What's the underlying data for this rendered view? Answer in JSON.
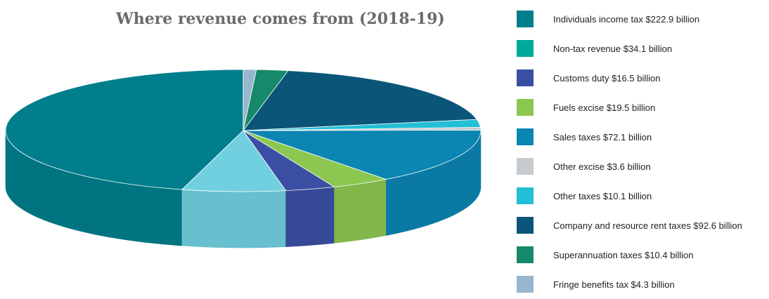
{
  "chart_data": {
    "type": "pie",
    "title": "Where revenue comes from (2018-19)",
    "legend_position": "right",
    "slices": [
      {
        "label": "Individuals income tax $222.9 billion",
        "value": 222.9,
        "color": "#007e8c"
      },
      {
        "label": "Non-tax revenue $34.1 billion",
        "value": 34.1,
        "color": "#71d0df"
      },
      {
        "label": "Customs duty $16.5 billion",
        "value": 16.5,
        "color": "#3a4fa3"
      },
      {
        "label": "Fuels excise $19.5 billion",
        "value": 19.5,
        "color": "#8cc751"
      },
      {
        "label": "Sales taxes $72.1 billion",
        "value": 72.1,
        "color": "#0b85b2"
      },
      {
        "label": "Other excise $3.6 billion",
        "value": 3.6,
        "color": "#c7cbce"
      },
      {
        "label": "Other taxes $10.1 billion",
        "value": 10.1,
        "color": "#22bfd6"
      },
      {
        "label": "Company and resource rent taxes $92.6 billion",
        "value": 92.6,
        "color": "#0b5579"
      },
      {
        "label": "Superannuation taxes $10.4 billion",
        "value": 10.4,
        "color": "#16896a"
      },
      {
        "label": "Fringe benefits tax $4.3 billion",
        "value": 4.3,
        "color": "#98b6cf"
      }
    ],
    "legend": [
      {
        "label": "Individuals income tax $222.9 billion",
        "color": "#007e8c"
      },
      {
        "label": "Non-tax revenue $34.1 billion",
        "color": "#00a99d"
      },
      {
        "label": "Customs duty $16.5 billion",
        "color": "#3a4fa3"
      },
      {
        "label": "Fuels excise $19.5 billion",
        "color": "#8cc751"
      },
      {
        "label": "Sales taxes $72.1 billion",
        "color": "#0b85b2"
      },
      {
        "label": "Other excise $3.6 billion",
        "color": "#c7cbce"
      },
      {
        "label": "Other taxes $10.1 billion",
        "color": "#22bfd6"
      },
      {
        "label": "Company and resource rent taxes $92.6 billion",
        "color": "#0b5579"
      },
      {
        "label": "Superannuation taxes $10.4 billion",
        "color": "#16896a"
      },
      {
        "label": "Fringe benefits tax $4.3 billion",
        "color": "#98b6cf"
      }
    ]
  }
}
